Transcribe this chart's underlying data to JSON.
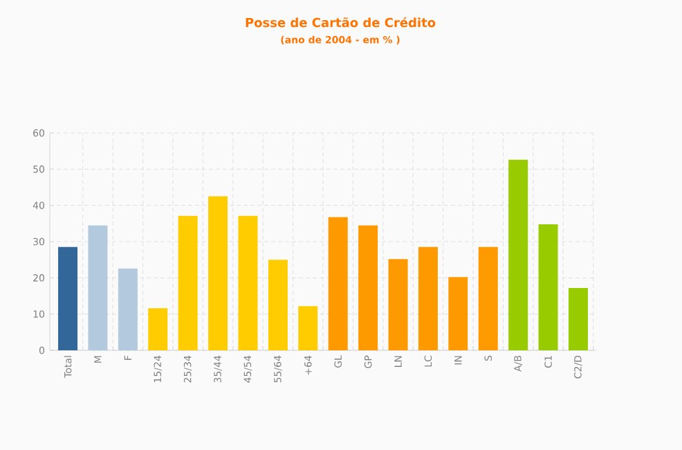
{
  "chart_data": {
    "type": "bar",
    "title": "Posse de Cartão de Crédito",
    "subtitle": "(ano de 2004 - em % )",
    "categories": [
      "Total",
      "M",
      "F",
      "15/24",
      "25/34",
      "35/44",
      "45/54",
      "55/64",
      "+64",
      "GL",
      "GP",
      "LN",
      "LC",
      "IN",
      "S",
      "A/B",
      "C1",
      "C2/D"
    ],
    "values": [
      28.5,
      34.5,
      22.6,
      11.6,
      37.1,
      42.5,
      37.1,
      25.0,
      12.2,
      36.8,
      34.5,
      25.2,
      28.5,
      20.2,
      28.5,
      52.6,
      34.8,
      17.2
    ],
    "colors": [
      "#336699",
      "#b3c9dd",
      "#b3c9dd",
      "#ffcc00",
      "#ffcc00",
      "#ffcc00",
      "#ffcc00",
      "#ffcc00",
      "#ffcc00",
      "#ff9900",
      "#ff9900",
      "#ff9900",
      "#ff9900",
      "#ff9900",
      "#ff9900",
      "#99cc00",
      "#99cc00",
      "#99cc00"
    ],
    "ylim": [
      0,
      60
    ],
    "yticks": [
      0,
      10,
      20,
      30,
      40,
      50,
      60
    ],
    "grid": true
  }
}
